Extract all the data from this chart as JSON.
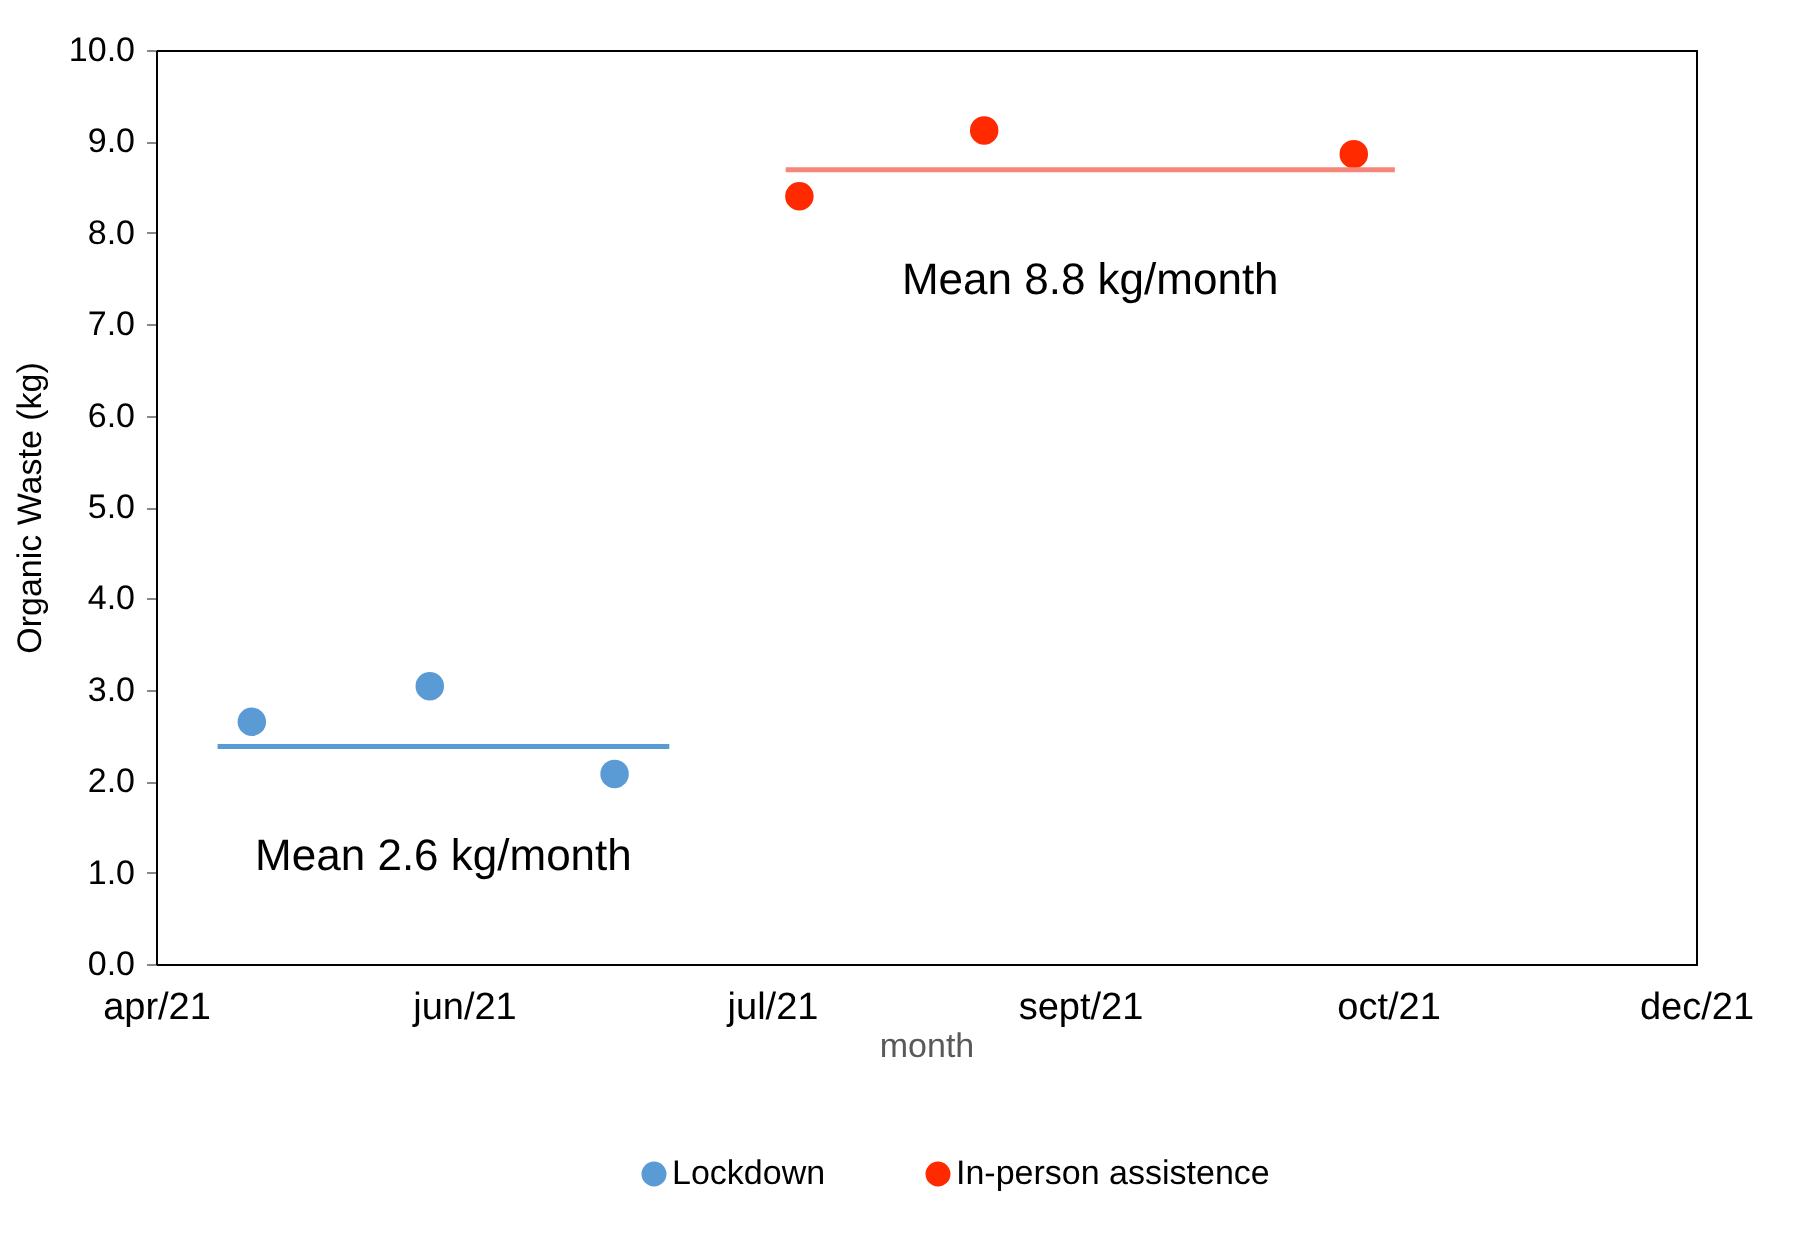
{
  "chart_data": {
    "type": "scatter",
    "xlabel": "month",
    "ylabel": "Organic Waste (kg)",
    "xlim": [
      "2021-04-30",
      "2021-12-11"
    ],
    "xticks": [
      {
        "value": "2021-04-30",
        "label": "apr/21"
      },
      {
        "value": "2021-06-14",
        "label": "jun/21"
      },
      {
        "value": "2021-07-29",
        "label": "jul/21"
      },
      {
        "value": "2021-09-12",
        "label": "sept/21"
      },
      {
        "value": "2021-10-27",
        "label": "oct/21"
      },
      {
        "value": "2021-12-11",
        "label": "dec/21"
      }
    ],
    "ylim": [
      0,
      10
    ],
    "yticks": [
      {
        "value": 0,
        "label": "0.0"
      },
      {
        "value": 1,
        "label": "1.0"
      },
      {
        "value": 2,
        "label": "2.0"
      },
      {
        "value": 3,
        "label": "3.0"
      },
      {
        "value": 4,
        "label": "4.0"
      },
      {
        "value": 5,
        "label": "5.0"
      },
      {
        "value": 6,
        "label": "6.0"
      },
      {
        "value": 7,
        "label": "7.0"
      },
      {
        "value": 8,
        "label": "8.0"
      },
      {
        "value": 9,
        "label": "9.0"
      },
      {
        "value": 10,
        "label": "10.0"
      }
    ],
    "grid": false,
    "legend": "bottom",
    "marker": "circle",
    "series": [
      {
        "name": "Lockdown",
        "color": "#5b9bd5",
        "x": [
          "2021-05-14",
          "2021-06-09",
          "2021-07-06"
        ],
        "values": [
          2.65,
          3.04,
          2.08
        ]
      },
      {
        "name": "In-person assistence",
        "color": "#ff2a00",
        "x": [
          "2021-08-02",
          "2021-08-29",
          "2021-10-22"
        ],
        "values": [
          8.4,
          9.12,
          8.86
        ]
      },
      {
        "type": "line",
        "marker": "none",
        "color": "#5b9bd5",
        "x": [
          "2021-05-09",
          "2021-07-14"
        ],
        "values": [
          2.38,
          2.38
        ]
      },
      {
        "type": "line",
        "marker": "none",
        "color": "#f4877a",
        "x": [
          "2021-07-31",
          "2021-10-28"
        ],
        "values": [
          8.69,
          8.69
        ]
      }
    ],
    "annotations": [
      "Mean 2.6 kg/month",
      "Mean 8.8 kg/month"
    ]
  }
}
